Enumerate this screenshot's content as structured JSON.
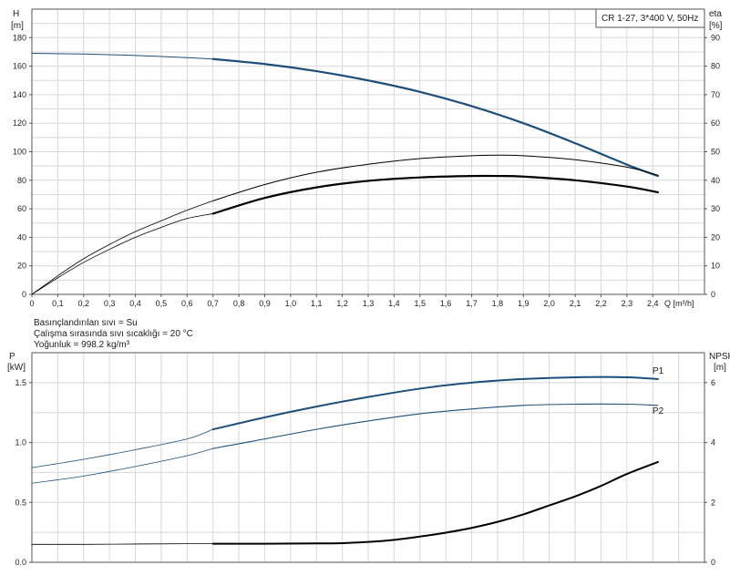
{
  "chart_data": [
    {
      "type": "line",
      "title": "CR 1-27, 3*400 V, 50Hz",
      "ylabel_left": "H",
      "ylabel_left_unit": "[m]",
      "ylabel_right": "eta",
      "ylabel_right_unit": "[%]",
      "xlabel": "Q [m³/h]",
      "xlim": [
        0,
        2.6
      ],
      "ylim_left": [
        0,
        200
      ],
      "ylim_right": [
        0,
        100
      ],
      "grid": true,
      "x_ticks": [
        "0",
        "0,1",
        "0,2",
        "0,3",
        "0,4",
        "0,5",
        "0,6",
        "0,7",
        "0,8",
        "0,9",
        "1,0",
        "1,1",
        "1,2",
        "1,3",
        "1,4",
        "1,5",
        "1,6",
        "1,7",
        "1,8",
        "1,9",
        "2,0",
        "2,1",
        "2,2",
        "2,3",
        "2,4"
      ],
      "y_left_ticks": [
        "0",
        "20",
        "40",
        "60",
        "80",
        "100",
        "120",
        "140",
        "160",
        "180"
      ],
      "y_right_ticks": [
        "0",
        "10",
        "20",
        "30",
        "40",
        "50",
        "60",
        "70",
        "80",
        "90"
      ],
      "series": [
        {
          "axis": "left",
          "color": "#1d4f7a",
          "width": 1.0,
          "x": [
            0,
            0.2,
            0.4,
            0.6,
            0.7
          ],
          "y": [
            169,
            168.5,
            167.5,
            166,
            165
          ]
        },
        {
          "axis": "left",
          "color": "#1d4f7a",
          "width": 2.2,
          "x": [
            0.7,
            0.9,
            1.1,
            1.3,
            1.5,
            1.7,
            1.9,
            2.1,
            2.3,
            2.42
          ],
          "y": [
            165,
            161.5,
            156.5,
            150,
            142,
            132,
            120,
            106,
            91,
            83
          ]
        },
        {
          "axis": "right",
          "color": "#000000",
          "width": 0.8,
          "x": [
            0,
            0.1,
            0.2,
            0.3,
            0.4,
            0.5,
            0.6,
            0.7
          ],
          "y": [
            0,
            6.5,
            12.5,
            17.5,
            22,
            25.8,
            29.5,
            32.8
          ]
        },
        {
          "axis": "right",
          "color": "#000000",
          "width": 1.0,
          "x": [
            0.7,
            0.9,
            1.1,
            1.3,
            1.5,
            1.7,
            1.8,
            1.9,
            2.1,
            2.3,
            2.42
          ],
          "y": [
            32.8,
            38.5,
            42.8,
            45.6,
            47.6,
            48.6,
            48.8,
            48.6,
            47.2,
            44.6,
            41.8
          ]
        },
        {
          "axis": "right",
          "color": "#000000",
          "width": 0.8,
          "x": [
            0,
            0.1,
            0.2,
            0.3,
            0.4,
            0.5,
            0.6,
            0.7
          ],
          "y": [
            0,
            5.8,
            11.2,
            15.8,
            20,
            23.5,
            26.6,
            28.3
          ]
        },
        {
          "axis": "right",
          "color": "#000000",
          "width": 2.2,
          "x": [
            0.7,
            0.9,
            1.1,
            1.3,
            1.5,
            1.7,
            1.8,
            1.9,
            2.1,
            2.3,
            2.42
          ],
          "y": [
            28.3,
            33.8,
            37.5,
            39.8,
            41,
            41.5,
            41.5,
            41.3,
            40,
            37.8,
            35.8
          ]
        }
      ]
    },
    {
      "type": "line",
      "ylabel_left": "P",
      "ylabel_left_unit": "[kW]",
      "ylabel_right": "NPSH",
      "ylabel_right_unit": "[m]",
      "xlim": [
        0,
        2.6
      ],
      "ylim_left": [
        0,
        1.75
      ],
      "ylim_right": [
        0,
        7
      ],
      "grid": true,
      "y_left_ticks": [
        "0.0",
        "0.5",
        "1.0",
        "1.5"
      ],
      "y_right_ticks": [
        "0",
        "2",
        "4",
        "6"
      ],
      "series": [
        {
          "name": "P1",
          "axis": "left",
          "color": "#1d4f7a",
          "width": 0.8,
          "x": [
            0,
            0.2,
            0.4,
            0.6,
            0.7
          ],
          "y": [
            0.79,
            0.86,
            0.94,
            1.03,
            1.11
          ]
        },
        {
          "name": "P1",
          "axis": "left",
          "color": "#1d4f7a",
          "width": 2.0,
          "x": [
            0.7,
            0.9,
            1.1,
            1.3,
            1.5,
            1.7,
            1.9,
            2.1,
            2.3,
            2.42
          ],
          "y": [
            1.11,
            1.21,
            1.3,
            1.38,
            1.45,
            1.5,
            1.53,
            1.545,
            1.545,
            1.53
          ]
        },
        {
          "name": "P2",
          "axis": "left",
          "color": "#1d4f7a",
          "width": 0.8,
          "x": [
            0,
            0.2,
            0.4,
            0.6,
            0.7
          ],
          "y": [
            0.66,
            0.72,
            0.8,
            0.89,
            0.95
          ]
        },
        {
          "name": "P2",
          "axis": "left",
          "color": "#1d4f7a",
          "width": 1.1,
          "x": [
            0.7,
            0.9,
            1.1,
            1.3,
            1.5,
            1.7,
            1.9,
            2.1,
            2.3,
            2.42
          ],
          "y": [
            0.95,
            1.03,
            1.11,
            1.18,
            1.24,
            1.28,
            1.31,
            1.32,
            1.32,
            1.31
          ]
        },
        {
          "axis": "right",
          "color": "#000000",
          "width": 0.8,
          "x": [
            0,
            0.2,
            0.4,
            0.6,
            0.7
          ],
          "y": [
            0.6,
            0.6,
            0.61,
            0.62,
            0.62
          ]
        },
        {
          "axis": "right",
          "color": "#000000",
          "width": 2.0,
          "x": [
            0.7,
            0.9,
            1.1,
            1.2,
            1.3,
            1.4,
            1.5,
            1.6,
            1.7,
            1.8,
            1.9,
            2.0,
            2.1,
            2.2,
            2.3,
            2.42
          ],
          "y": [
            0.62,
            0.62,
            0.63,
            0.64,
            0.68,
            0.75,
            0.86,
            0.99,
            1.15,
            1.35,
            1.6,
            1.9,
            2.2,
            2.55,
            2.95,
            3.35
          ]
        }
      ],
      "legend": [
        {
          "label": "P1",
          "anchor_series": 1
        },
        {
          "label": "P2",
          "anchor_series": 3
        }
      ]
    }
  ],
  "info_lines": [
    "Basınçlandırılan sıvı = Su",
    "Çalışma sırasında sıvı sıcaklığı = 20 °C",
    "Yoğunluk = 998.2 kg/m³"
  ]
}
